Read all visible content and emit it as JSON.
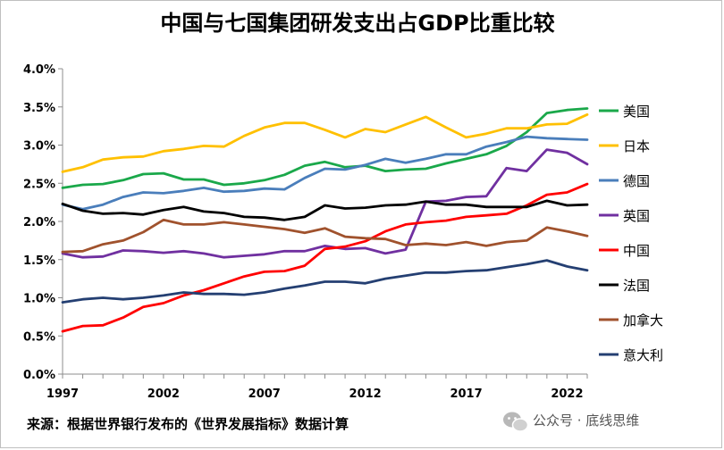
{
  "chart_data": {
    "type": "line",
    "title": "中国与七国集团研发支出占GDP比重比较",
    "xlabel": "",
    "ylabel": "",
    "x": [
      1997,
      1998,
      1999,
      2000,
      2001,
      2002,
      2003,
      2004,
      2005,
      2006,
      2007,
      2008,
      2009,
      2010,
      2011,
      2012,
      2013,
      2014,
      2015,
      2016,
      2017,
      2018,
      2019,
      2020,
      2021,
      2022,
      2023
    ],
    "x_ticks": [
      "1997",
      "2002",
      "2007",
      "2012",
      "2017",
      "2022"
    ],
    "x_tick_values": [
      1997,
      2002,
      2007,
      2012,
      2017,
      2022
    ],
    "ylim": [
      0,
      0.04
    ],
    "y_ticks": [
      "0.0%",
      "0.5%",
      "1.0%",
      "1.5%",
      "2.0%",
      "2.5%",
      "3.0%",
      "3.5%",
      "4.0%"
    ],
    "y_tick_values": [
      0,
      0.005,
      0.01,
      0.015,
      0.02,
      0.025,
      0.03,
      0.035,
      0.04
    ],
    "grid": false,
    "legend_position": "right",
    "series": [
      {
        "name": "美国",
        "color": "#1aa84a",
        "values": [
          0.0244,
          0.0248,
          0.0249,
          0.0254,
          0.0262,
          0.0263,
          0.0255,
          0.0255,
          0.0248,
          0.025,
          0.0254,
          0.0261,
          0.0273,
          0.0278,
          0.0271,
          0.0273,
          0.0266,
          0.0268,
          0.0269,
          0.0276,
          0.0282,
          0.0288,
          0.0299,
          0.0317,
          0.0342,
          0.0346,
          0.0348
        ]
      },
      {
        "name": "日本",
        "color": "#ffc000",
        "values": [
          0.0265,
          0.0271,
          0.0281,
          0.0284,
          0.0285,
          0.0292,
          0.0295,
          0.0299,
          0.0298,
          0.0312,
          0.0323,
          0.0329,
          0.0329,
          0.032,
          0.031,
          0.0321,
          0.0317,
          0.0327,
          0.0337,
          0.0323,
          0.031,
          0.0315,
          0.0322,
          0.0322,
          0.0327,
          0.0328,
          0.034
        ]
      },
      {
        "name": "德国",
        "color": "#4a7ebb",
        "values": [
          0.0222,
          0.0216,
          0.0222,
          0.0232,
          0.0238,
          0.0237,
          0.024,
          0.0244,
          0.0239,
          0.024,
          0.0243,
          0.0242,
          0.0257,
          0.0269,
          0.0268,
          0.0274,
          0.0282,
          0.0277,
          0.0282,
          0.0288,
          0.0288,
          0.0298,
          0.0304,
          0.0311,
          0.0309,
          0.0308,
          0.0307
        ]
      },
      {
        "name": "英国",
        "color": "#7030a0",
        "values": [
          0.0158,
          0.0153,
          0.0154,
          0.0162,
          0.0161,
          0.0159,
          0.0161,
          0.0158,
          0.0153,
          0.0155,
          0.0157,
          0.0161,
          0.0161,
          0.0168,
          0.0164,
          0.0165,
          0.0158,
          0.0163,
          0.0226,
          0.0227,
          0.0232,
          0.0233,
          0.027,
          0.0266,
          0.0294,
          0.029,
          0.0275
        ]
      },
      {
        "name": "中国",
        "color": "#ff0000",
        "values": [
          0.0056,
          0.0063,
          0.0064,
          0.0074,
          0.0088,
          0.0093,
          0.0103,
          0.011,
          0.0119,
          0.0128,
          0.0134,
          0.0135,
          0.0142,
          0.0164,
          0.0167,
          0.0174,
          0.0187,
          0.0196,
          0.0199,
          0.0201,
          0.0206,
          0.0208,
          0.021,
          0.0221,
          0.0235,
          0.0238,
          0.0249
        ]
      },
      {
        "name": "法国",
        "color": "#000000",
        "values": [
          0.0223,
          0.0214,
          0.021,
          0.0211,
          0.0209,
          0.0215,
          0.0219,
          0.0213,
          0.0211,
          0.0206,
          0.0205,
          0.0202,
          0.0206,
          0.0221,
          0.0217,
          0.0218,
          0.0221,
          0.0222,
          0.0226,
          0.0222,
          0.0222,
          0.0219,
          0.0219,
          0.0219,
          0.0227,
          0.0221,
          0.0222
        ]
      },
      {
        "name": "加拿大",
        "color": "#a0522d",
        "values": [
          0.016,
          0.0161,
          0.017,
          0.0175,
          0.0186,
          0.0202,
          0.0196,
          0.0196,
          0.0199,
          0.0196,
          0.0193,
          0.019,
          0.0185,
          0.0191,
          0.018,
          0.0178,
          0.0177,
          0.0169,
          0.0171,
          0.0169,
          0.0173,
          0.0168,
          0.0173,
          0.0175,
          0.0192,
          0.0187,
          0.0181
        ]
      },
      {
        "name": "意大利",
        "color": "#243f72",
        "values": [
          0.0094,
          0.0098,
          0.01,
          0.0098,
          0.01,
          0.0103,
          0.0107,
          0.0105,
          0.0105,
          0.0104,
          0.0107,
          0.0112,
          0.0116,
          0.0121,
          0.0121,
          0.0119,
          0.0125,
          0.0129,
          0.0133,
          0.0133,
          0.0135,
          0.0136,
          0.014,
          0.0144,
          0.0149,
          0.0141,
          0.0136
        ]
      }
    ]
  },
  "source_note": "来源：根据世界银行发布的《世界发展指标》数据计算",
  "watermark": {
    "icon": "wechat-icon",
    "text": "公众号 · 底线思维"
  }
}
